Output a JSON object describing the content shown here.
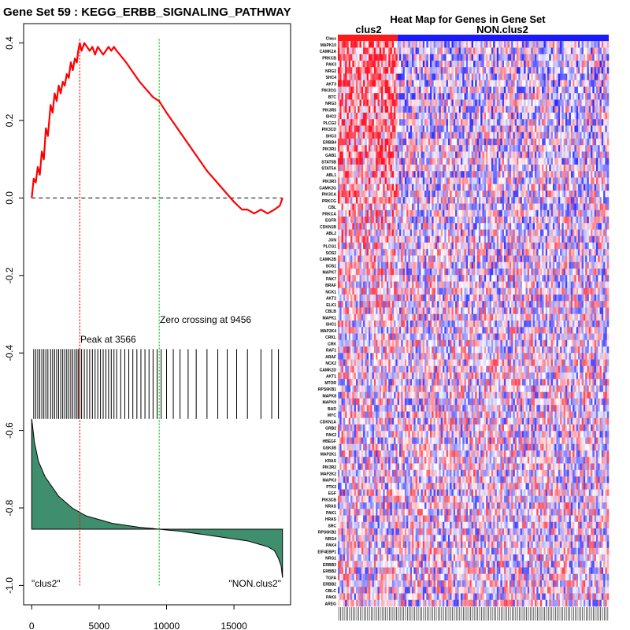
{
  "chart_data": [
    {
      "type": "line",
      "title": "Gene Set  59 : KEGG_ERBB_SIGNALING_PATHWAY",
      "xlabel": "",
      "ylabel": "",
      "xlim": [
        -600,
        19200
      ],
      "ylim": [
        -1.05,
        0.45
      ],
      "x_ticks": [
        0,
        5000,
        10000,
        15000
      ],
      "x_tick_labels": [
        "0",
        "5000",
        "10000",
        "15000"
      ],
      "y_ticks": [
        0.4,
        0.2,
        0.0,
        -0.2,
        -0.4,
        -0.6,
        -0.8,
        -1.0
      ],
      "y_tick_labels": [
        "0.4",
        "0.2",
        "0.0",
        "-0.2",
        "-0.4",
        "-0.6",
        "-0.8",
        "-1.0"
      ],
      "series": [
        {
          "name": "running enrichment score",
          "color": "#ff0000",
          "x": [
            0,
            150,
            300,
            450,
            600,
            750,
            900,
            1050,
            1200,
            1400,
            1550,
            1700,
            1850,
            2000,
            2150,
            2300,
            2450,
            2600,
            2750,
            2900,
            3050,
            3200,
            3350,
            3450,
            3566,
            3700,
            3900,
            4100,
            4300,
            4500,
            4700,
            4900,
            5100,
            5300,
            5500,
            5700,
            5900,
            6100,
            6300,
            7000,
            8000,
            9000,
            9456,
            10000,
            11000,
            12000,
            13000,
            14000,
            14500,
            15000,
            15300,
            15600,
            16000,
            16500,
            17000,
            17500,
            18000,
            18400,
            18600
          ],
          "values": [
            0.0,
            0.05,
            0.04,
            0.08,
            0.06,
            0.12,
            0.1,
            0.18,
            0.16,
            0.24,
            0.22,
            0.27,
            0.25,
            0.29,
            0.27,
            0.3,
            0.29,
            0.32,
            0.31,
            0.35,
            0.33,
            0.36,
            0.35,
            0.38,
            0.4,
            0.38,
            0.4,
            0.39,
            0.38,
            0.39,
            0.37,
            0.39,
            0.38,
            0.37,
            0.38,
            0.39,
            0.38,
            0.39,
            0.38,
            0.35,
            0.3,
            0.26,
            0.25,
            0.22,
            0.17,
            0.12,
            0.07,
            0.03,
            0.01,
            -0.01,
            -0.02,
            -0.03,
            -0.03,
            -0.04,
            -0.03,
            -0.04,
            -0.03,
            -0.02,
            0.0
          ]
        }
      ],
      "hlines": [
        {
          "y": 0.0,
          "style": "dashed",
          "color": "#000000"
        }
      ],
      "vlines": [
        {
          "x": 3566,
          "color": "#ff0000",
          "style": "dotted"
        },
        {
          "x": 9456,
          "color": "#00cc00",
          "style": "dotted"
        }
      ],
      "annotations": {
        "peak": "Peak at 3566",
        "zero_crossing": "Zero crossing at 9456",
        "left_class": "\"clus2\"",
        "right_class": "\"NON.clus2\""
      },
      "hit_positions": [
        150,
        300,
        450,
        600,
        750,
        900,
        1050,
        1200,
        1400,
        1550,
        1700,
        1850,
        2000,
        2150,
        2300,
        2450,
        2600,
        2750,
        2900,
        3050,
        3200,
        3350,
        3450,
        3566,
        3700,
        3900,
        4100,
        4300,
        4500,
        4700,
        4900,
        5100,
        5300,
        5500,
        5700,
        5900,
        6100,
        6300,
        6600,
        6900,
        7200,
        7500,
        7800,
        8100,
        8400,
        8700,
        9000,
        9300,
        9600,
        10000,
        10500,
        11000,
        11600,
        12200,
        13000,
        13800,
        14500,
        15200,
        16000,
        17000,
        17800,
        18300
      ],
      "ranked_metric": {
        "description": "ranked list metric (filled area)",
        "color": "#3f8f6f",
        "baseline": -0.855,
        "x": [
          0,
          200,
          500,
          1000,
          2000,
          3000,
          4000,
          5000,
          6000,
          7000,
          8000,
          9000,
          9456,
          10000,
          11000,
          12000,
          13000,
          14000,
          15000,
          16000,
          17000,
          17500,
          18000,
          18300,
          18500,
          18600
        ],
        "values": [
          -0.57,
          -0.63,
          -0.68,
          -0.72,
          -0.77,
          -0.8,
          -0.82,
          -0.83,
          -0.84,
          -0.845,
          -0.85,
          -0.853,
          -0.855,
          -0.857,
          -0.86,
          -0.865,
          -0.87,
          -0.875,
          -0.88,
          -0.885,
          -0.895,
          -0.9,
          -0.91,
          -0.93,
          -0.95,
          -0.98
        ]
      }
    },
    {
      "type": "heatmap",
      "title": "Heat Map for Genes in Gene Set",
      "class_labels": [
        "clus2",
        "NON.clus2"
      ],
      "class_colors": [
        "#ff1a1a",
        "#1a1aff"
      ],
      "class_split_fraction": 0.22,
      "row_header": "Class",
      "genes": [
        "MAPK10",
        "CAMK2A",
        "PRKCB",
        "PAK3",
        "NRG2",
        "SHC4",
        "AKT3",
        "PIK3CG",
        "BTC",
        "NRG3",
        "PIK3R5",
        "SHC2",
        "PLCG2",
        "PIK3CD",
        "SHC3",
        "ERBB4",
        "PIK3R1",
        "GAB1",
        "STAT5B",
        "STAT5A",
        "ABL1",
        "PIK3R3",
        "CAMK2G",
        "PIK3CA",
        "PRKCG",
        "CBL",
        "PRKCA",
        "EGFR",
        "CDKN1B",
        "ABL2",
        "JUN",
        "PLCG1",
        "SOS2",
        "CAMK2B",
        "SOS1",
        "MAPK7",
        "PAK7",
        "BRAF",
        "NCK1",
        "AKT2",
        "ELK1",
        "CBLB",
        "MAPK1",
        "SHC1",
        "MAP2K4",
        "CRKL",
        "CRK",
        "RAF1",
        "ARAF",
        "NCK2",
        "CAMK2D",
        "AKT1",
        "MTOR",
        "RPS6KB1",
        "MAPK8",
        "MAPK9",
        "BAD",
        "MYC",
        "CDKN1A",
        "GRB2",
        "PAK2",
        "HBEGF",
        "GSK3B",
        "MAP2K1",
        "KRAS",
        "PIK3R2",
        "MAP2K2",
        "MAPK3",
        "PTK2",
        "EGF",
        "PIK3CB",
        "NRAS",
        "PAK1",
        "HRAS",
        "SRC",
        "RPS6KB2",
        "NRG4",
        "PAK4",
        "EIF4EBP1",
        "NRG1",
        "ERBB3",
        "ERBB2",
        "TGFA",
        "ERBB2",
        "CBLC",
        "PAK6",
        "AREG"
      ]
    }
  ]
}
